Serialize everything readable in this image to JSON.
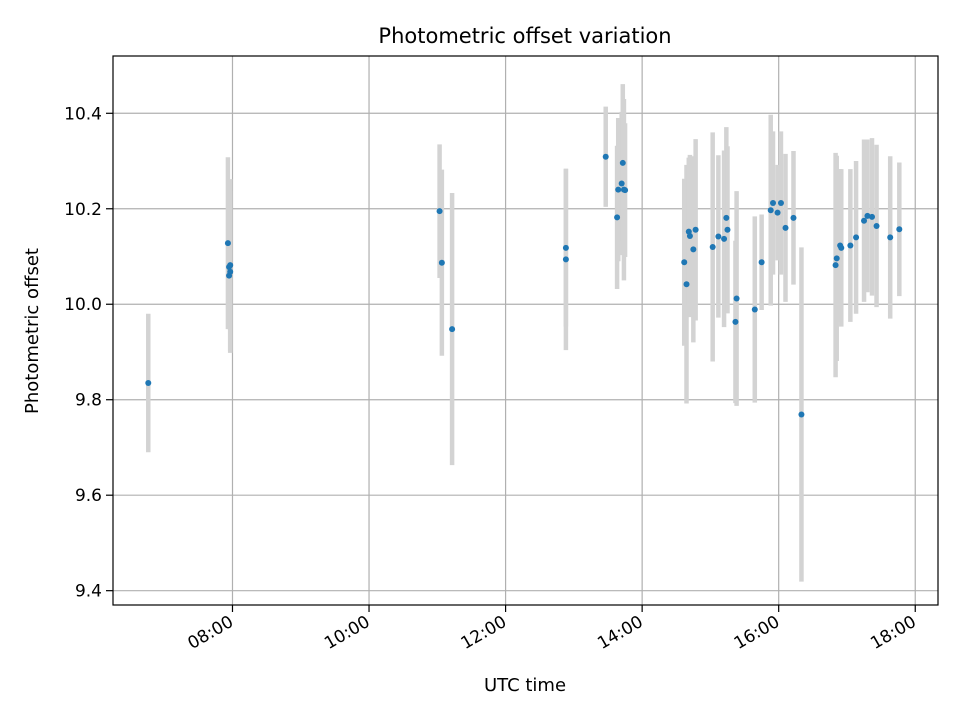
{
  "chart_data": {
    "type": "scatter",
    "title": "Photometric offset variation",
    "xlabel": "UTC time",
    "ylabel": "Photometric offset",
    "x_ticks": [
      "08:00",
      "10:00",
      "12:00",
      "14:00",
      "16:00",
      "18:00"
    ],
    "y_ticks": [
      "9.4",
      "9.6",
      "9.8",
      "10.0",
      "10.2",
      "10.4"
    ],
    "xlim": [
      "06:15",
      "18:20"
    ],
    "ylim": [
      9.37,
      10.52
    ],
    "grid": true,
    "legend": "none",
    "point_color": "#1f77b4",
    "errorbar_color": "#d3d3d3",
    "series": [
      {
        "x": [
          "06:46",
          "07:56",
          "07:57",
          "07:57",
          "07:58",
          "07:58",
          "11:02",
          "11:04",
          "11:13",
          "12:53",
          "12:53",
          "13:28",
          "13:38",
          "13:39",
          "13:42",
          "13:43",
          "13:44",
          "13:45",
          "14:37",
          "14:39",
          "14:41",
          "14:42",
          "14:45",
          "14:47",
          "15:02",
          "15:07",
          "15:12",
          "15:14",
          "15:15",
          "15:22",
          "15:23",
          "15:39",
          "15:45",
          "15:53",
          "15:55",
          "15:59",
          "16:02",
          "16:06",
          "16:13",
          "16:20",
          "16:50",
          "16:51",
          "16:54",
          "16:55",
          "17:03",
          "17:08",
          "17:15",
          "17:18",
          "17:22",
          "17:26",
          "17:38",
          "17:46"
        ],
        "y": [
          9.835,
          10.128,
          10.06,
          10.078,
          10.068,
          10.082,
          10.195,
          10.087,
          9.948,
          10.118,
          10.094,
          10.309,
          10.182,
          10.24,
          10.253,
          10.296,
          10.24,
          10.239,
          10.088,
          10.042,
          10.152,
          10.143,
          10.115,
          10.156,
          10.12,
          10.142,
          10.137,
          10.181,
          10.156,
          9.963,
          10.012,
          9.989,
          10.088,
          10.197,
          10.212,
          10.192,
          10.212,
          10.16,
          10.181,
          9.769,
          10.082,
          10.096,
          10.123,
          10.118,
          10.123,
          10.14,
          10.175,
          10.185,
          10.183,
          10.164,
          10.14,
          10.157
        ],
        "error": [
          0.145,
          0.18,
          0.11,
          0.13,
          0.17,
          0.18,
          0.14,
          0.195,
          0.285,
          0.165,
          0.19,
          0.105,
          0.15,
          0.15,
          0.15,
          0.165,
          0.19,
          0.14,
          0.175,
          0.25,
          0.155,
          0.17,
          0.195,
          0.19,
          0.24,
          0.17,
          0.185,
          0.19,
          0.175,
          0.17,
          0.225,
          0.195,
          0.1,
          0.2,
          0.15,
          0.1,
          0.15,
          0.155,
          0.14,
          0.35,
          0.235,
          0.215,
          0.16,
          0.165,
          0.16,
          0.16,
          0.17,
          0.16,
          0.165,
          0.17,
          0.17,
          0.14
        ]
      }
    ]
  }
}
